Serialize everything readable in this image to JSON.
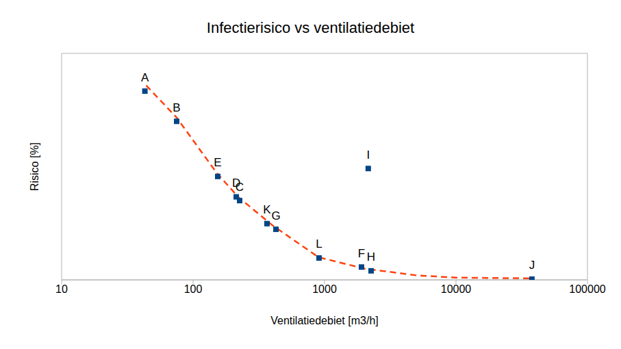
{
  "chart_data": {
    "type": "scatter",
    "title": "Infectierisico vs ventilatiedebiet",
    "x_label": "Ventilatiedebiet [m3/h]",
    "y_label": "Risico [%]",
    "log": "x",
    "xlim": [
      10,
      100000
    ],
    "xticks": [
      10,
      100,
      1000,
      10000,
      100000
    ],
    "ylim": [
      0,
      6
    ],
    "yticks": [
      0,
      1,
      2,
      3,
      4,
      5,
      6
    ],
    "grid": true,
    "tick_labels": "x",
    "series": [
      {
        "type": "scatter",
        "marker": "square",
        "color": "#004586",
        "x": [
          43,
          75,
          154,
          213,
          226,
          365,
          427,
          908,
          1910,
          2260,
          2150,
          37800
        ],
        "values": [
          5.0,
          4.2,
          2.74,
          2.2,
          2.1,
          1.49,
          1.34,
          0.58,
          0.34,
          0.24,
          2.95,
          0.02
        ],
        "labels": [
          "A",
          "B",
          "E",
          "D",
          "C",
          "K",
          "G",
          "L",
          "F",
          "H",
          "I",
          "J"
        ]
      },
      {
        "type": "line",
        "line_style": "dashed",
        "color": "#ff420e",
        "x": [
          44,
          75,
          150,
          220,
          400,
          900,
          2000,
          5000,
          10000,
          37000
        ],
        "values": [
          5.15,
          4.3,
          2.85,
          2.2,
          1.45,
          0.6,
          0.3,
          0.12,
          0.06,
          0.04
        ]
      }
    ]
  }
}
